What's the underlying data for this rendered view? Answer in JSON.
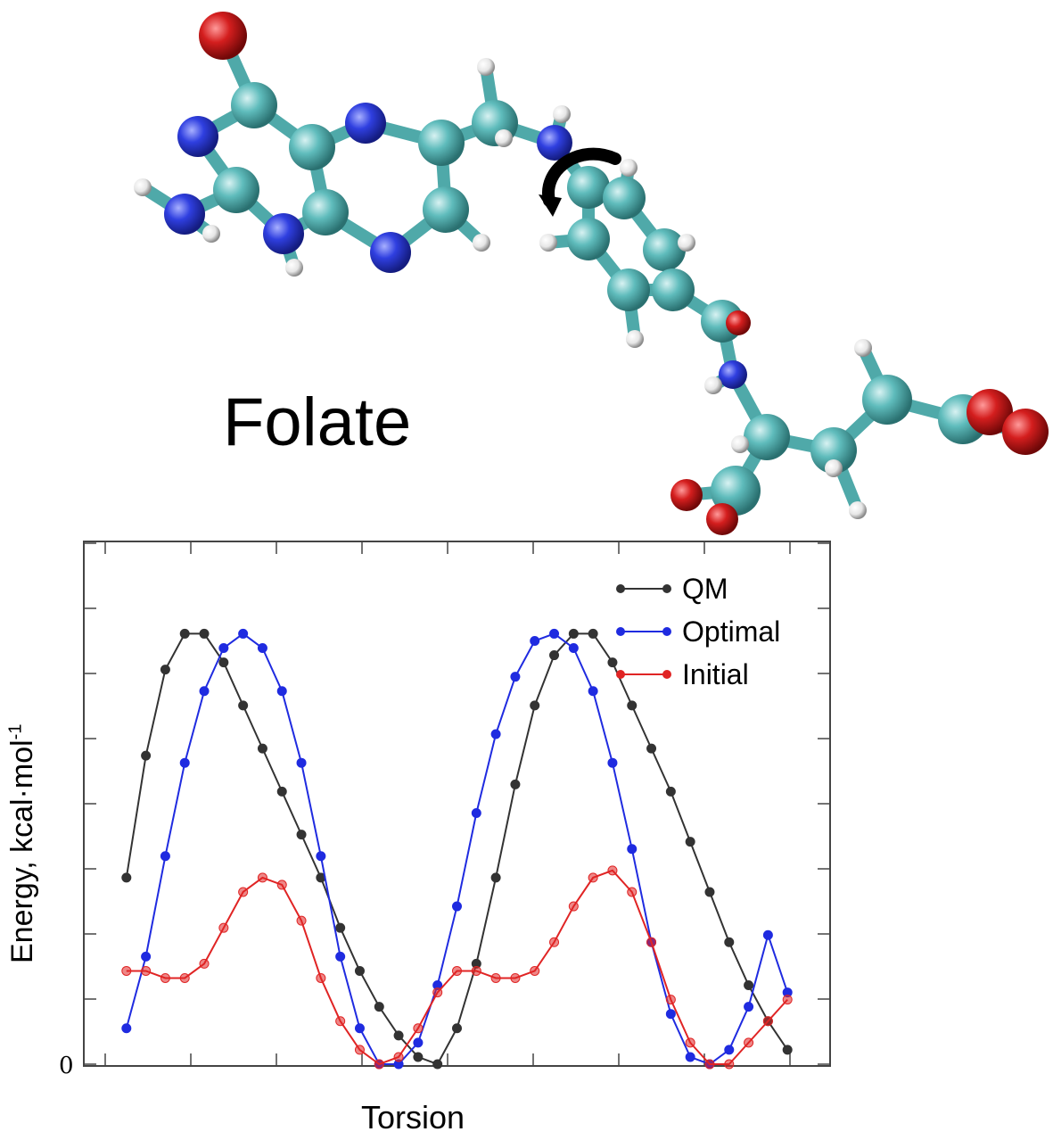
{
  "molecule": {
    "label": "Folate",
    "colors": {
      "carbon": "#5fbcbc",
      "nitrogen": "#2f3fe0",
      "oxygen": "#d41e1e",
      "hydrogen": "#f2f2f2",
      "arrow": "#000000"
    },
    "rotation_arrow": "curved-rotation-arrow-icon"
  },
  "chart_data": {
    "type": "line",
    "xlabel": "Torsion",
    "ylabel": "Energy, kcal·mol",
    "ylabel_sup": "-1",
    "y_tick_labels": [
      "0"
    ],
    "ylim": [
      0,
      7
    ],
    "xlim": [
      -180,
      180
    ],
    "grid": false,
    "legend_position": "top-right",
    "x": [
      -170,
      -160,
      -150,
      -140,
      -130,
      -120,
      -110,
      -100,
      -90,
      -80,
      -70,
      -60,
      -50,
      -40,
      -30,
      -20,
      -10,
      0,
      10,
      20,
      30,
      40,
      50,
      60,
      70,
      80,
      90,
      100,
      110,
      120,
      130,
      140,
      150,
      160,
      170
    ],
    "series": [
      {
        "name": "QM",
        "color": "#333333",
        "values": [
          2.6,
          4.3,
          5.5,
          6.0,
          6.0,
          5.6,
          5.0,
          4.4,
          3.8,
          3.2,
          2.6,
          1.9,
          1.3,
          0.8,
          0.4,
          0.1,
          0.0,
          0.5,
          1.4,
          2.6,
          3.9,
          5.0,
          5.7,
          6.0,
          6.0,
          5.6,
          5.0,
          4.4,
          3.8,
          3.1,
          2.4,
          1.7,
          1.1,
          0.6,
          0.2
        ]
      },
      {
        "name": "Optimal",
        "color": "#1f2be0",
        "values": [
          0.5,
          1.5,
          2.9,
          4.2,
          5.2,
          5.8,
          6.0,
          5.8,
          5.2,
          4.2,
          2.9,
          1.5,
          0.5,
          0.0,
          0.0,
          0.3,
          1.1,
          2.2,
          3.5,
          4.6,
          5.4,
          5.9,
          6.0,
          5.8,
          5.2,
          4.2,
          3.0,
          1.7,
          0.7,
          0.1,
          0.0,
          0.2,
          0.8,
          1.8,
          1.0
        ]
      },
      {
        "name": "Initial",
        "color": "#e02424",
        "values": [
          1.3,
          1.3,
          1.2,
          1.2,
          1.4,
          1.9,
          2.4,
          2.6,
          2.5,
          2.0,
          1.2,
          0.6,
          0.2,
          0.0,
          0.1,
          0.5,
          1.0,
          1.3,
          1.3,
          1.2,
          1.2,
          1.3,
          1.7,
          2.2,
          2.6,
          2.7,
          2.4,
          1.7,
          0.9,
          0.3,
          0.0,
          0.0,
          0.3,
          0.6,
          0.9
        ]
      }
    ]
  }
}
